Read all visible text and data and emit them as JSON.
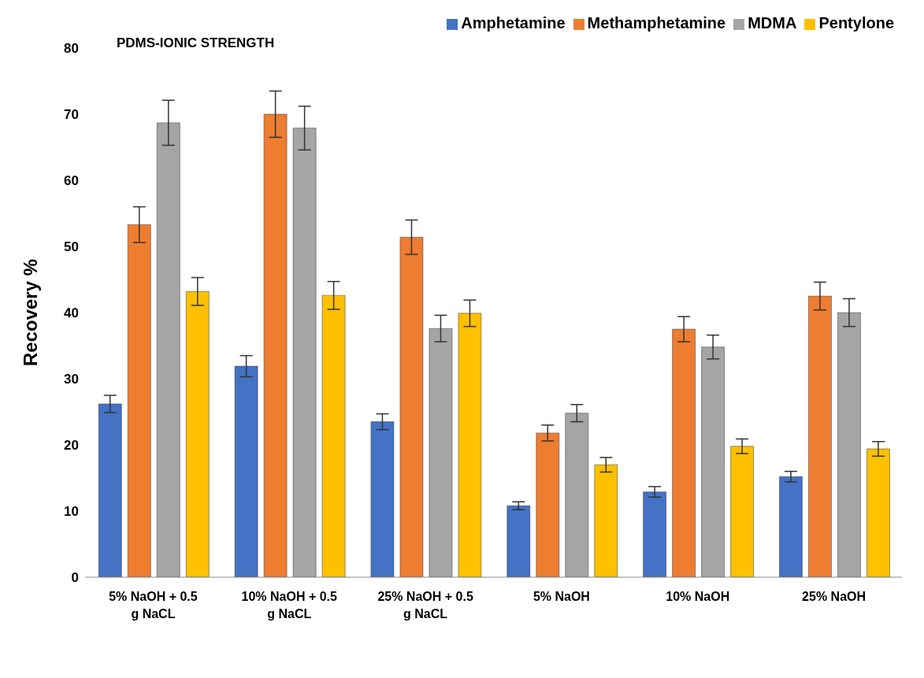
{
  "chart_data": {
    "type": "bar",
    "title": "PDMS-IONIC STRENGTH",
    "ylabel": "Recovery %",
    "categories": [
      "5% NaOH + 0.5 g NaCL",
      "10% NaOH + 0.5 g NaCL",
      "25% NaOH + 0.5 g NaCL",
      "5% NaOH",
      "10% NaOH",
      "25% NaOH"
    ],
    "series": [
      {
        "name": "Amphetamine",
        "color": "#4472c4",
        "values": [
          26.2,
          31.9,
          23.5,
          10.8,
          12.9,
          15.2
        ],
        "errors": [
          1.3,
          1.6,
          1.2,
          0.6,
          0.8,
          0.8
        ]
      },
      {
        "name": "Methamphetamine",
        "color": "#ed7d31",
        "values": [
          53.3,
          70,
          51.4,
          21.8,
          37.5,
          42.5
        ],
        "errors": [
          2.7,
          3.5,
          2.6,
          1.2,
          1.9,
          2.1
        ]
      },
      {
        "name": "MDMA",
        "color": "#a5a5a5",
        "values": [
          68.7,
          67.9,
          37.6,
          24.8,
          34.8,
          40
        ],
        "errors": [
          3.4,
          3.3,
          2,
          1.3,
          1.8,
          2.1
        ]
      },
      {
        "name": "Pentylone",
        "color": "#ffc000",
        "values": [
          43.2,
          42.6,
          39.9,
          17,
          19.8,
          19.4
        ],
        "errors": [
          2.1,
          2.1,
          2,
          1.1,
          1.1,
          1.1
        ]
      }
    ],
    "ylim": [
      0,
      80
    ],
    "yticks": [
      0,
      10,
      20,
      30,
      40,
      50,
      60,
      70,
      80
    ],
    "grid": false,
    "legend": "top right"
  }
}
